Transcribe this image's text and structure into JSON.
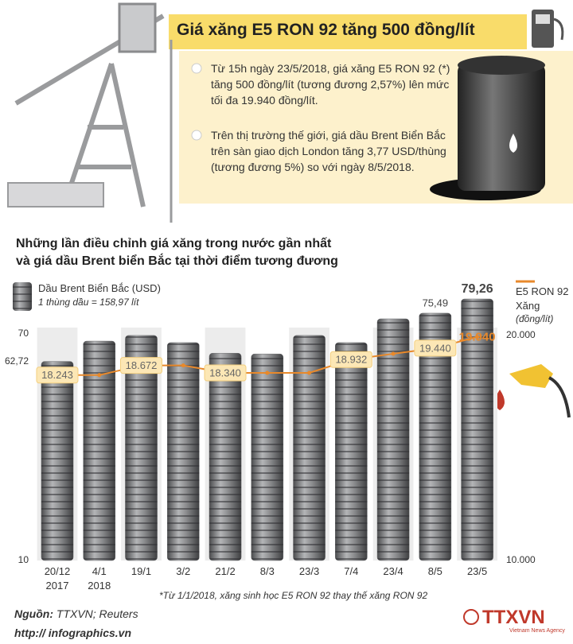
{
  "header": {
    "title": "Giá xăng E5 RON 92 tăng 500 đồng/lít",
    "bullets": [
      "Từ 15h ngày 23/5/2018, giá xăng E5 RON 92 (*) tăng 500 đồng/lít (tương đương 2,57%) lên mức tối đa 19.940 đồng/lít.",
      "Trên thị trường thế giới, giá dầu Brent Biển Bắc trên sàn giao dịch London  tăng 3,77 USD/thùng (tương đương 5%) so với ngày 8/5/2018."
    ]
  },
  "chart_data": {
    "type": "bar",
    "title": [
      "Những lần điều chỉnh giá xăng trong nước gần nhất",
      "và giá dầu Brent biển Bắc tại thời điểm tương đương"
    ],
    "categories": [
      "20/12 2017",
      "4/1 2018",
      "19/1",
      "3/2",
      "21/2",
      "8/3",
      "23/3",
      "7/4",
      "23/4",
      "8/5",
      "23/5"
    ],
    "series": [
      {
        "name": "Dầu Brent Biển Bắc (USD)",
        "note": "1 thùng dầu = 158,97 lít",
        "color": "#6d6e70",
        "values": [
          62.72,
          68.1,
          69.6,
          67.7,
          64.9,
          64.7,
          69.6,
          67.7,
          74.0,
          75.49,
          79.26
        ],
        "value_labels": [
          null,
          null,
          null,
          null,
          null,
          null,
          null,
          null,
          null,
          "75,49",
          "79,26"
        ]
      },
      {
        "name": "E5 RON 92 Xăng",
        "unit": "(đồng/lít)",
        "color": "#e8892b",
        "axis": "y2",
        "values": [
          18243,
          18243,
          18672,
          18672,
          18340,
          18340,
          18340,
          18932,
          19190,
          19440,
          19940
        ],
        "value_labels": [
          "18.243",
          null,
          "18.672",
          null,
          "18.340",
          null,
          null,
          "18.932",
          null,
          "19.440",
          "19.940"
        ]
      }
    ],
    "ylim": [
      10,
      80
    ],
    "yticks": [
      70,
      {
        "value": 62.72,
        "label": "62,72"
      },
      10
    ],
    "y2lim": [
      10000,
      21750
    ],
    "y2ticks": [
      {
        "value": 20000,
        "label": "20.000"
      },
      {
        "value": 10000,
        "label": "10.000"
      }
    ],
    "grid": false,
    "footnote": "*Từ 1/1/2018, xăng sinh học E5 RON 92 thay thế xăng RON 92"
  },
  "footer": {
    "source_label": "Nguồn:",
    "source": "TTXVN; Reuters",
    "website": "http:// infographics.vn",
    "logo": "TTXVN",
    "logo_sub": "Vietnam News Agency"
  }
}
